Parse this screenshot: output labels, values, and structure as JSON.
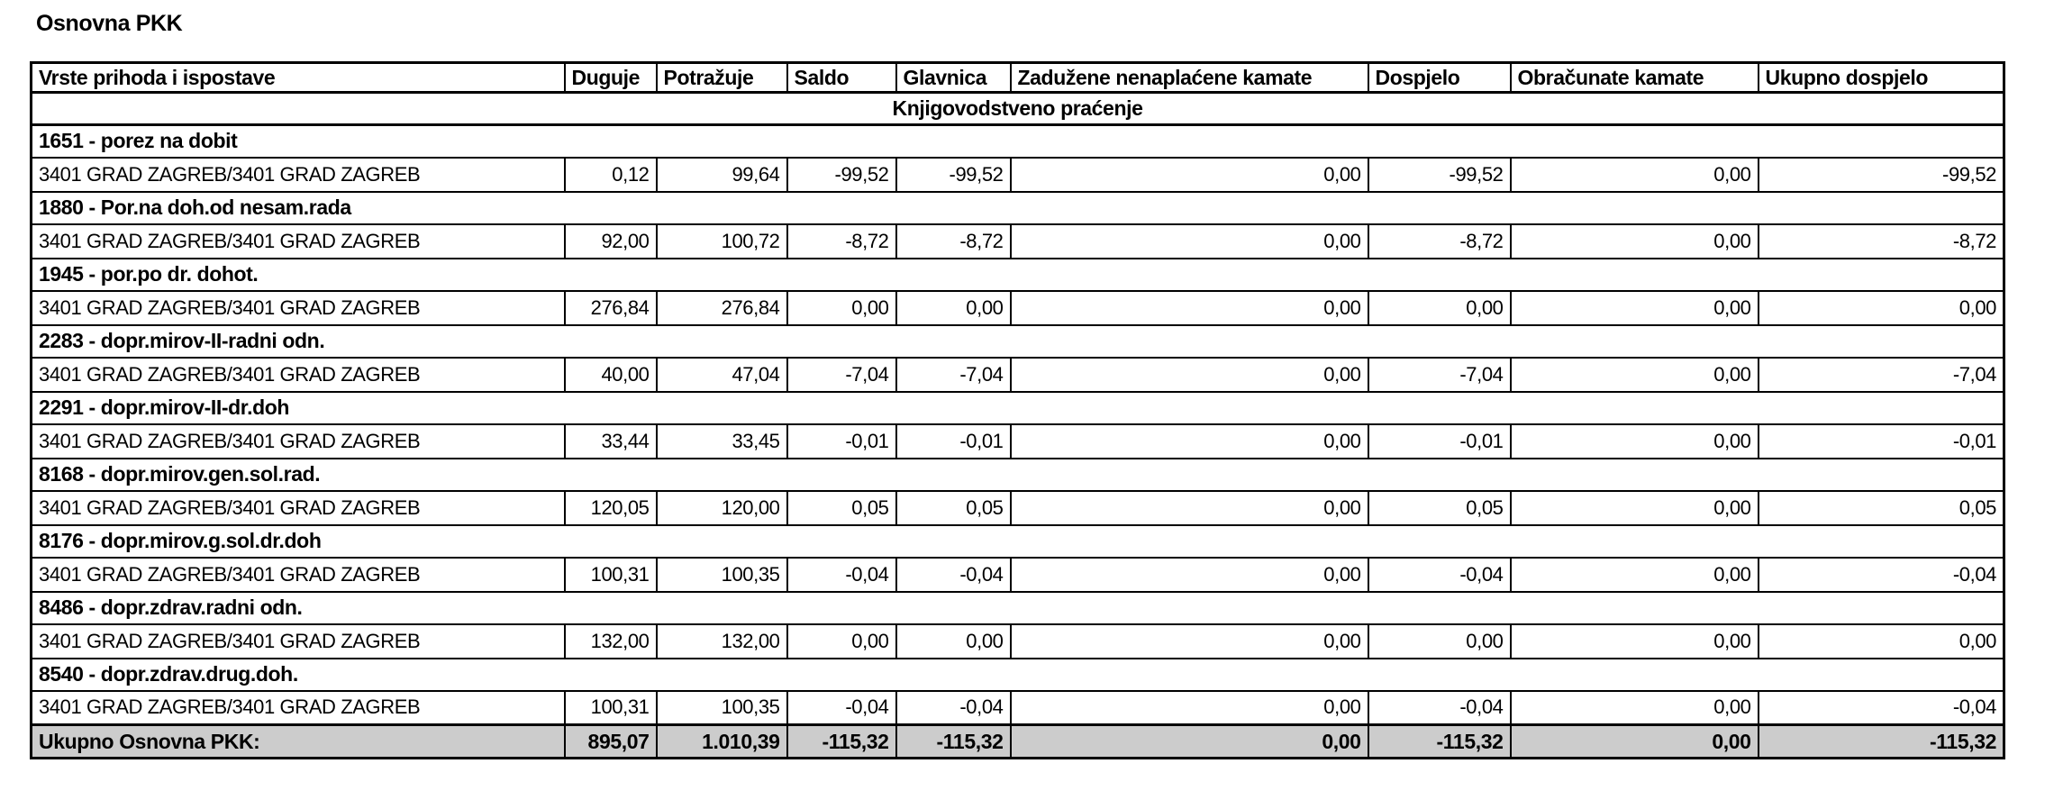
{
  "page_title": "Osnovna PKK",
  "table": {
    "columns": [
      {
        "label": "Vrste prihoda i ispostave"
      },
      {
        "label": "Duguje"
      },
      {
        "label": "Potražuje"
      },
      {
        "label": "Saldo"
      },
      {
        "label": "Glavnica"
      },
      {
        "label": "Zadužene nenaplaćene kamate"
      },
      {
        "label": "Dospjelo"
      },
      {
        "label": "Obračunate kamate"
      },
      {
        "label": "Ukupno dospjelo"
      }
    ],
    "section_header": "Knjigovodstveno praćenje",
    "groups": [
      {
        "title": "1651 - porez na dobit",
        "rows": [
          {
            "name": "3401 GRAD ZAGREB/3401 GRAD ZAGREB",
            "values": [
              "0,12",
              "99,64",
              "-99,52",
              "-99,52",
              "0,00",
              "-99,52",
              "0,00",
              "-99,52"
            ]
          }
        ]
      },
      {
        "title": "1880 - Por.na doh.od nesam.rada",
        "rows": [
          {
            "name": "3401 GRAD ZAGREB/3401 GRAD ZAGREB",
            "values": [
              "92,00",
              "100,72",
              "-8,72",
              "-8,72",
              "0,00",
              "-8,72",
              "0,00",
              "-8,72"
            ]
          }
        ]
      },
      {
        "title": "1945 - por.po dr. dohot.",
        "rows": [
          {
            "name": "3401 GRAD ZAGREB/3401 GRAD ZAGREB",
            "values": [
              "276,84",
              "276,84",
              "0,00",
              "0,00",
              "0,00",
              "0,00",
              "0,00",
              "0,00"
            ]
          }
        ]
      },
      {
        "title": "2283 - dopr.mirov-II-radni odn.",
        "rows": [
          {
            "name": "3401 GRAD ZAGREB/3401 GRAD ZAGREB",
            "values": [
              "40,00",
              "47,04",
              "-7,04",
              "-7,04",
              "0,00",
              "-7,04",
              "0,00",
              "-7,04"
            ]
          }
        ]
      },
      {
        "title": "2291 - dopr.mirov-II-dr.doh",
        "rows": [
          {
            "name": "3401 GRAD ZAGREB/3401 GRAD ZAGREB",
            "values": [
              "33,44",
              "33,45",
              "-0,01",
              "-0,01",
              "0,00",
              "-0,01",
              "0,00",
              "-0,01"
            ]
          }
        ]
      },
      {
        "title": "8168 - dopr.mirov.gen.sol.rad.",
        "rows": [
          {
            "name": "3401 GRAD ZAGREB/3401 GRAD ZAGREB",
            "values": [
              "120,05",
              "120,00",
              "0,05",
              "0,05",
              "0,00",
              "0,05",
              "0,00",
              "0,05"
            ]
          }
        ]
      },
      {
        "title": "8176 - dopr.mirov.g.sol.dr.doh",
        "rows": [
          {
            "name": "3401 GRAD ZAGREB/3401 GRAD ZAGREB",
            "values": [
              "100,31",
              "100,35",
              "-0,04",
              "-0,04",
              "0,00",
              "-0,04",
              "0,00",
              "-0,04"
            ]
          }
        ]
      },
      {
        "title": "8486 - dopr.zdrav.radni odn.",
        "rows": [
          {
            "name": "3401 GRAD ZAGREB/3401 GRAD ZAGREB",
            "values": [
              "132,00",
              "132,00",
              "0,00",
              "0,00",
              "0,00",
              "0,00",
              "0,00",
              "0,00"
            ]
          }
        ]
      },
      {
        "title": "8540 - dopr.zdrav.drug.doh.",
        "rows": [
          {
            "name": "3401 GRAD ZAGREB/3401 GRAD ZAGREB",
            "values": [
              "100,31",
              "100,35",
              "-0,04",
              "-0,04",
              "0,00",
              "-0,04",
              "0,00",
              "-0,04"
            ]
          }
        ]
      }
    ],
    "total": {
      "label": "Ukupno Osnovna PKK:",
      "values": [
        "895,07",
        "1.010,39",
        "-115,32",
        "-115,32",
        "0,00",
        "-115,32",
        "0,00",
        "-115,32"
      ]
    },
    "total_row_bg": "#cccccc"
  }
}
